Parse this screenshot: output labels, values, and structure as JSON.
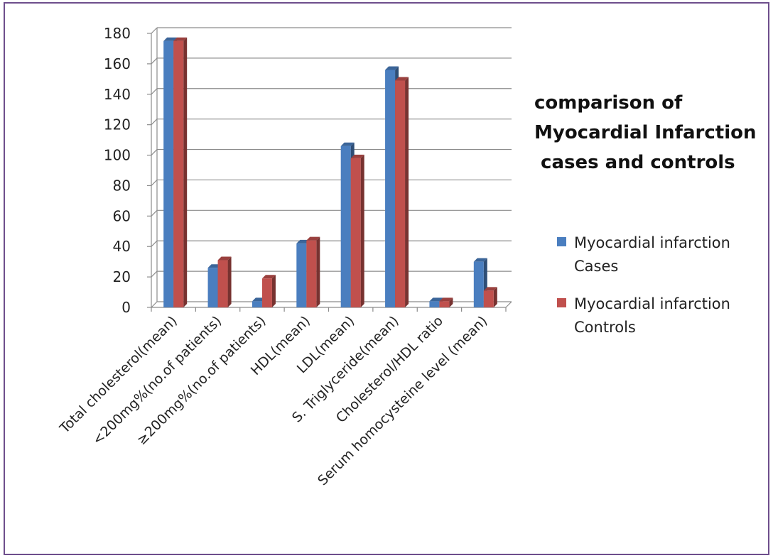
{
  "chart_data": {
    "type": "bar",
    "title_lines": [
      "comparison of",
      "Myocardial Infarction",
      " cases and controls"
    ],
    "categories": [
      "Total cholesterol(mean)",
      "<200mg%(no.of  patients)",
      "≥200mg%(no.of  patients)",
      "HDL(mean)",
      "LDL(mean)",
      "S. Triglyceride(mean)",
      "Cholesterol/HDL ratio",
      "Serum homocysteine level (mean)"
    ],
    "series": [
      {
        "name_lines": [
          "Myocardial infarction",
          "Cases"
        ],
        "color": "#4a7ebf",
        "values": [
          175,
          26,
          4,
          42,
          106,
          156,
          4,
          30
        ]
      },
      {
        "name_lines": [
          "Myocardial infarction",
          "Controls"
        ],
        "color": "#c0504d",
        "values": [
          175,
          31,
          19,
          44,
          98,
          149,
          4,
          11
        ]
      }
    ],
    "yticks": [
      0,
      20,
      40,
      60,
      80,
      100,
      120,
      140,
      160,
      180
    ],
    "ylim": [
      0,
      180
    ],
    "grid": true,
    "legend_position": "right"
  }
}
